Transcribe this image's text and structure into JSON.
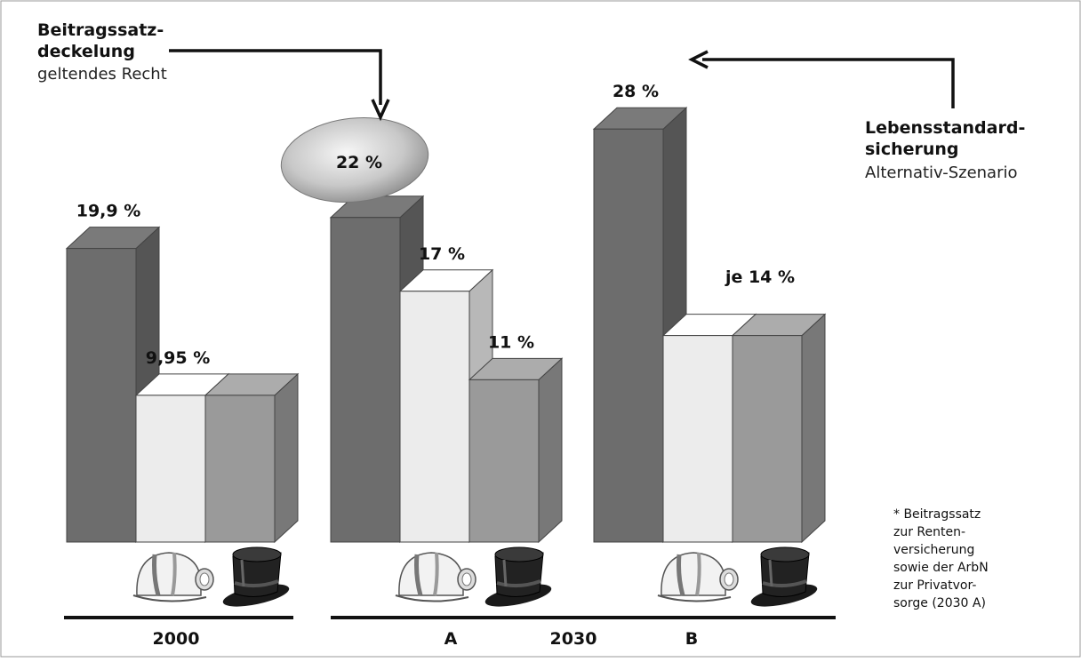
{
  "chart_data": {
    "type": "bar",
    "title": "",
    "xlabel": "",
    "ylabel": "",
    "ylim": [
      0,
      30
    ],
    "grid": false,
    "groups": [
      {
        "label": "2000",
        "sublabel": "",
        "bars": [
          {
            "name": "Beitragssatz",
            "value": 19.9,
            "label": "19,9 %"
          },
          {
            "name": "Arbeitnehmer",
            "value": 9.95,
            "label": "9,95 %"
          },
          {
            "name": "Arbeitgeber",
            "value": 9.95,
            "label": ""
          }
        ]
      },
      {
        "label": "2030",
        "sublabel": "A",
        "bars": [
          {
            "name": "Beitragssatz",
            "value": 22,
            "label": "22 %"
          },
          {
            "name": "Arbeitnehmer",
            "value": 17,
            "label": "17 %"
          },
          {
            "name": "Arbeitgeber",
            "value": 11,
            "label": "11 %"
          }
        ]
      },
      {
        "label": "2030",
        "sublabel": "B",
        "bars": [
          {
            "name": "Beitragssatz",
            "value": 28,
            "label": "28 %"
          },
          {
            "name": "Arbeitnehmer",
            "value": 14,
            "label": ""
          },
          {
            "name": "Arbeitgeber",
            "value": 14,
            "label": ""
          }
        ]
      }
    ],
    "shared_label_B": "je 14 %",
    "colors": {
      "total": "#6d6d6d",
      "employee": "#ececec",
      "employer": "#9a9a9a"
    },
    "annotations": {
      "cap_title": "Beitragssatz-",
      "cap_title2": "deckelung",
      "cap_sub": "geltendes Recht",
      "lss_title": "Lebensstandard-",
      "lss_title2": "sicherung",
      "lss_sub": "Alternativ-Szenario",
      "footnote": [
        "* Beitragssatz",
        "zur Renten-",
        "versicherung",
        "sowie der ArbN",
        "zur Privatvor-",
        "sorge (2030 A)"
      ]
    },
    "axis_labels": {
      "g1": "2000",
      "gA": "A",
      "g2030": "2030",
      "gB": "B"
    },
    "icons": [
      "hard-hat-icon",
      "top-hat-icon"
    ]
  }
}
